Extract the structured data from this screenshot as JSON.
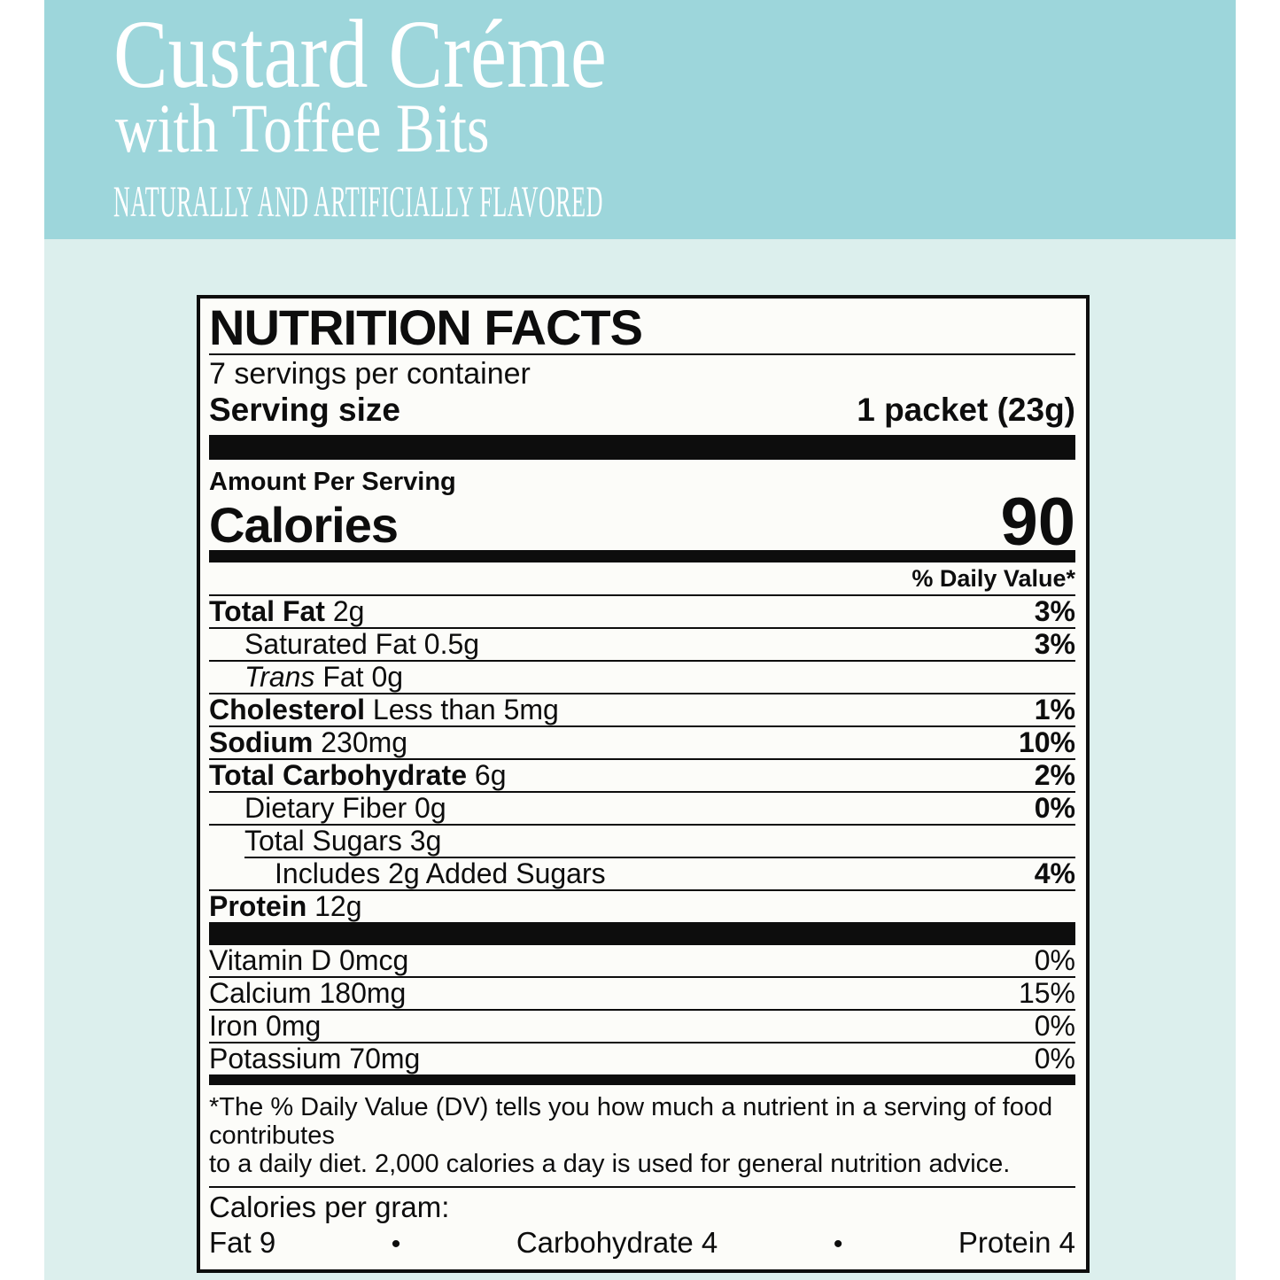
{
  "header": {
    "title_line1": "Custard Créme",
    "title_line2": "with Toffee Bits",
    "tagline": "NATURALLY AND ARTIFICIALLY FLAVORED"
  },
  "colors": {
    "header_band": "#9dd6db",
    "panel_background": "#dcefed",
    "label_background": "#fcfcf9",
    "ink": "#0d0d0d",
    "header_text": "#ffffff"
  },
  "label": {
    "title": "NUTRITION FACTS",
    "servings_per_container": "7 servings per container",
    "serving_size_label": "Serving size",
    "serving_size_value": "1 packet (23g)",
    "amount_per_serving": "Amount Per Serving",
    "calories_label": "Calories",
    "calories_value": "90",
    "daily_value_header": "% Daily Value*",
    "nutrients": [
      {
        "bold": "Total Fat",
        "italic": "",
        "text": " 2g",
        "pct": "3%"
      },
      {
        "bold": "",
        "italic": "",
        "text": "Saturated Fat 0.5g",
        "pct": "3%"
      },
      {
        "bold": "",
        "italic": "Trans",
        "text": " Fat 0g",
        "pct": ""
      },
      {
        "bold": "Cholesterol",
        "italic": "",
        "text": " Less than 5mg",
        "pct": "1%"
      },
      {
        "bold": "Sodium",
        "italic": "",
        "text": " 230mg",
        "pct": "10%"
      },
      {
        "bold": "Total Carbohydrate",
        "italic": "",
        "text": " 6g",
        "pct": "2%"
      },
      {
        "bold": "",
        "italic": "",
        "text": "Dietary Fiber 0g",
        "pct": "0%"
      },
      {
        "bold": "",
        "italic": "",
        "text": "Total Sugars 3g",
        "pct": ""
      },
      {
        "bold": "",
        "italic": "",
        "text": "Includes 2g Added Sugars",
        "pct": "4%"
      },
      {
        "bold": "Protein",
        "italic": "",
        "text": " 12g",
        "pct": ""
      }
    ],
    "vitamins": [
      {
        "text": "Vitamin D 0mcg",
        "pct": "0%"
      },
      {
        "text": "Calcium 180mg",
        "pct": "15%"
      },
      {
        "text": "Iron 0mg",
        "pct": "0%"
      },
      {
        "text": "Potassium 70mg",
        "pct": "0%"
      }
    ],
    "footnote_line1": "*The % Daily Value (DV) tells you how much a nutrient in a serving of food contributes",
    "footnote_line2": "to a daily diet. 2,000 calories a day is used for general nutrition advice.",
    "calories_per_gram_label": "Calories per gram:",
    "calories_per_gram": {
      "fat": "Fat 9",
      "bullet": "•",
      "carbohydrate": "Carbohydrate 4",
      "protein": "Protein 4"
    }
  }
}
